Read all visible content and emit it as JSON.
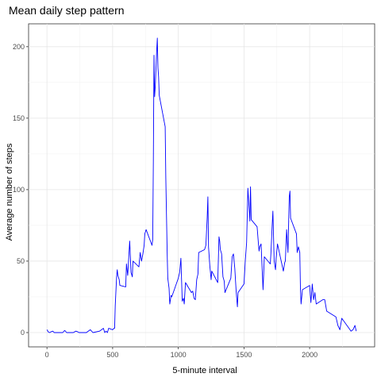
{
  "chart_data": {
    "type": "line",
    "title": "Mean daily step pattern",
    "xlabel": "5-minute interval",
    "ylabel": "Average number of steps",
    "xlim": [
      -140,
      2495
    ],
    "ylim": [
      -10,
      216
    ],
    "xticks": [
      0,
      500,
      1000,
      1500,
      2000
    ],
    "xtick_labels": [
      "0",
      "500",
      "1000",
      "1500",
      "2000"
    ],
    "yticks": [
      0,
      50,
      100,
      150,
      200
    ],
    "ytick_labels": [
      "0",
      "50",
      "100",
      "150",
      "200"
    ],
    "grid": true,
    "line_color": "#0000ff",
    "series": [
      {
        "x": [
          0,
          10,
          20,
          30,
          45,
          55,
          100,
          120,
          135,
          150,
          200,
          220,
          235,
          245,
          300,
          330,
          350,
          400,
          430,
          440,
          450,
          460,
          470,
          500,
          510,
          515,
          520,
          530,
          535,
          540,
          550,
          555,
          600,
          605,
          615,
          630,
          640,
          650,
          655,
          700,
          710,
          720,
          730,
          740,
          745,
          755,
          800,
          805,
          810,
          815,
          820,
          825,
          835,
          840,
          845,
          850,
          855,
          900,
          905,
          915,
          920,
          930,
          935,
          945,
          950,
          1000,
          1010,
          1020,
          1030,
          1040,
          1045,
          1055,
          1100,
          1110,
          1120,
          1130,
          1140,
          1150,
          1155,
          1200,
          1210,
          1215,
          1220,
          1225,
          1230,
          1240,
          1250,
          1255,
          1300,
          1310,
          1315,
          1320,
          1330,
          1340,
          1350,
          1355,
          1400,
          1410,
          1420,
          1430,
          1440,
          1450,
          1455,
          1500,
          1510,
          1520,
          1530,
          1545,
          1550,
          1555,
          1600,
          1610,
          1615,
          1620,
          1630,
          1645,
          1650,
          1655,
          1700,
          1705,
          1715,
          1720,
          1730,
          1740,
          1745,
          1755,
          1800,
          1810,
          1815,
          1825,
          1835,
          1845,
          1850,
          1855,
          1900,
          1905,
          1915,
          1925,
          1930,
          1935,
          1945,
          2000,
          2010,
          2020,
          2030,
          2040,
          2050,
          2100,
          2115,
          2130,
          2200,
          2215,
          2230,
          2245,
          2300,
          2315,
          2330,
          2345,
          2355
        ],
        "y": [
          2,
          0.5,
          0,
          0.5,
          1,
          0,
          0,
          0,
          1.5,
          0,
          0,
          1,
          0.5,
          0,
          0,
          2,
          0,
          1,
          3,
          0,
          1,
          0,
          3,
          2,
          3,
          3,
          19,
          39,
          44,
          40,
          37,
          33,
          32,
          48,
          40,
          64,
          42,
          39,
          50,
          46,
          56,
          50,
          55,
          61,
          69,
          72,
          61,
          65,
          120,
          194,
          165,
          173,
          196,
          206,
          185,
          179,
          166,
          144,
          108,
          56,
          38,
          31,
          20,
          26,
          25,
          38,
          42,
          52,
          22,
          24,
          20,
          35,
          28,
          29,
          24,
          23,
          37,
          41,
          56,
          58,
          61,
          71,
          80,
          95,
          60,
          47,
          37,
          43,
          35,
          67,
          64,
          58,
          55,
          39,
          36,
          28,
          38,
          53,
          55,
          45,
          30,
          18,
          28,
          34,
          50,
          63,
          101,
          78,
          102,
          79,
          74,
          62,
          57,
          60,
          62,
          30,
          41,
          53,
          48,
          55,
          75,
          85,
          50,
          44,
          52,
          62,
          43,
          49,
          50,
          72,
          56,
          95,
          99,
          80,
          69,
          56,
          60,
          56,
          31,
          20,
          30,
          33,
          21,
          34,
          23,
          28,
          20,
          23,
          23,
          15,
          11,
          5,
          2,
          10,
          3,
          1,
          2,
          5,
          1
        ]
      }
    ]
  }
}
